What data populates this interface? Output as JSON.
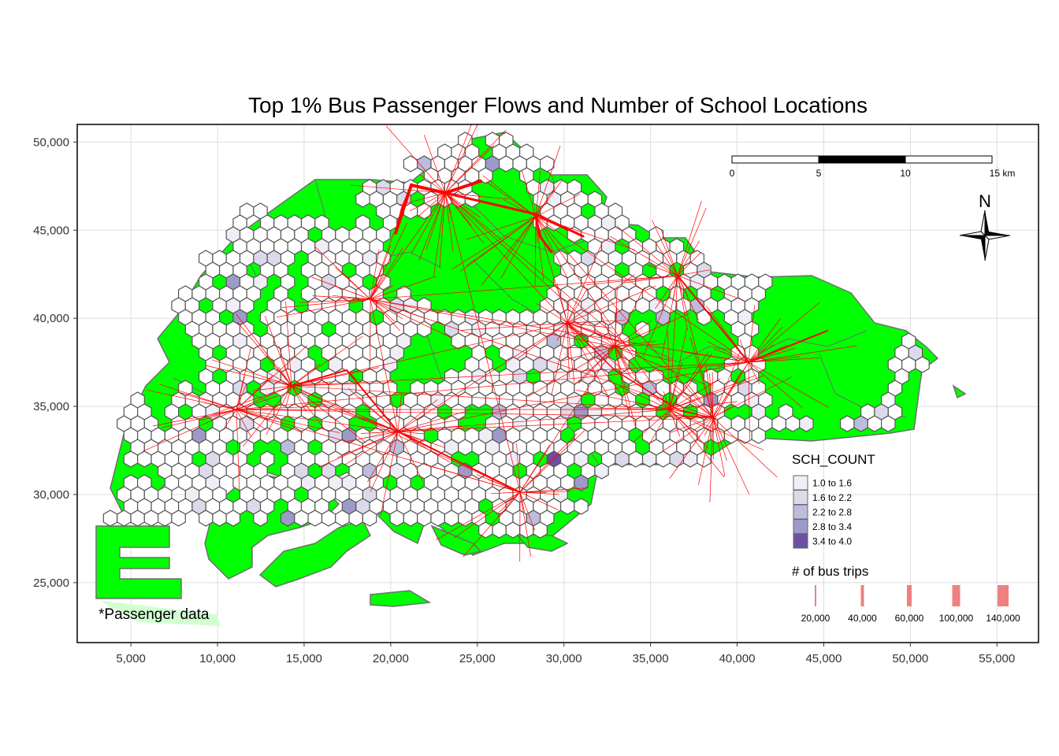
{
  "title": "Top 1% Bus Passenger Flows and Number of School Locations",
  "axes": {
    "x_ticks": [
      "5,000",
      "10,000",
      "15,000",
      "20,000",
      "25,000",
      "30,000",
      "35,000",
      "40,000",
      "45,000",
      "50,000",
      "55,000"
    ],
    "x_values": [
      5000,
      10000,
      15000,
      20000,
      25000,
      30000,
      35000,
      40000,
      45000,
      50000,
      55000
    ],
    "y_ticks": [
      "50,000",
      "45,000",
      "40,000",
      "35,000",
      "30,000",
      "25,000"
    ],
    "y_values": [
      50000,
      45000,
      40000,
      35000,
      30000,
      25000
    ],
    "xlim": [
      1900,
      57400
    ],
    "ylim": [
      21600,
      51000
    ]
  },
  "scalebar": {
    "labels": [
      "0",
      "5",
      "10",
      "15 km"
    ],
    "values": [
      0,
      5,
      10,
      15
    ]
  },
  "north_arrow": {
    "label": "N"
  },
  "legend_sch": {
    "title": "SCH_COUNT",
    "items": [
      {
        "label": "1.0 to 1.6",
        "color": "#efedf5"
      },
      {
        "label": "1.6 to 2.2",
        "color": "#dadaeb"
      },
      {
        "label": "2.2 to 2.8",
        "color": "#bcbddc"
      },
      {
        "label": "2.8 to 3.4",
        "color": "#9e9ac8"
      },
      {
        "label": "3.4 to 4.0",
        "color": "#6a51a3"
      }
    ]
  },
  "legend_trips": {
    "title": "# of bus trips",
    "items": [
      {
        "label": "20,000",
        "value": 20000
      },
      {
        "label": "40,000",
        "value": 40000
      },
      {
        "label": "60,000",
        "value": 60000
      },
      {
        "label": "100,000",
        "value": 100000
      },
      {
        "label": "140,000",
        "value": 140000
      }
    ]
  },
  "note": "*Passenger data",
  "colors": {
    "land": "#00ff00",
    "border": "#6e6e6e",
    "flow": "#ff0000",
    "hex_stroke": "#555555"
  }
}
